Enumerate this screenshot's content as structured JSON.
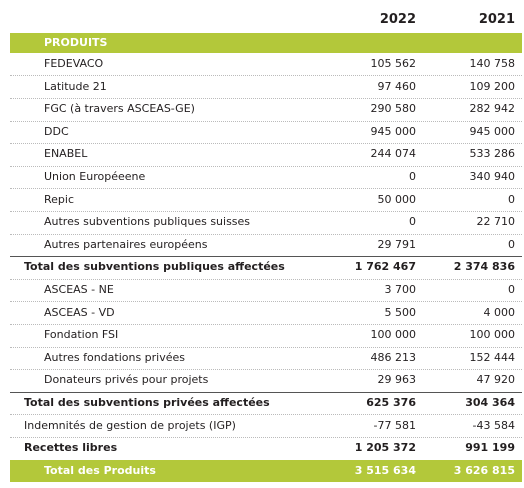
{
  "header": {
    "years": [
      "2022",
      "2021"
    ]
  },
  "section": {
    "title": "PRODUITS"
  },
  "table": {
    "rows": [
      [
        "FEDEVACO",
        "105 562",
        "140 758"
      ],
      [
        "Latitude 21",
        "97 460",
        "109 200"
      ],
      [
        "FGC (à travers ASCEAS-GE)",
        "290 580",
        "282 942"
      ],
      [
        "DDC",
        "945 000",
        "945 000"
      ],
      [
        "ENABEL",
        "244 074",
        "533 286"
      ],
      [
        "Union Européeene",
        "0",
        "340 940"
      ],
      [
        "Repic",
        "50 000",
        "0"
      ],
      [
        "Autres subventions publiques suisses",
        "0",
        "22 710"
      ],
      [
        "Autres partenaires européens",
        "29 791",
        "0"
      ],
      [
        "Total des subventions publiques affectées",
        "1 762 467",
        "2 374 836"
      ],
      [
        "ASCEAS - NE",
        "3 700",
        "0"
      ],
      [
        "ASCEAS - VD",
        "5 500",
        "4 000"
      ],
      [
        "Fondation FSI",
        "100 000",
        "100 000"
      ],
      [
        "Autres fondations privées",
        "486 213",
        "152 444"
      ],
      [
        "Donateurs privés pour projets",
        "29 963",
        "47 920"
      ],
      [
        "Total des subventions privées affectées",
        "625 376",
        "304 364"
      ],
      [
        "Indemnités de gestion de projets (IGP)",
        "-77 581",
        "-43 584"
      ],
      [
        "Recettes libres",
        "1 205 372",
        "991 199"
      ],
      [
        "Total des Produits",
        "3 515 634",
        "3 626 815"
      ]
    ]
  }
}
